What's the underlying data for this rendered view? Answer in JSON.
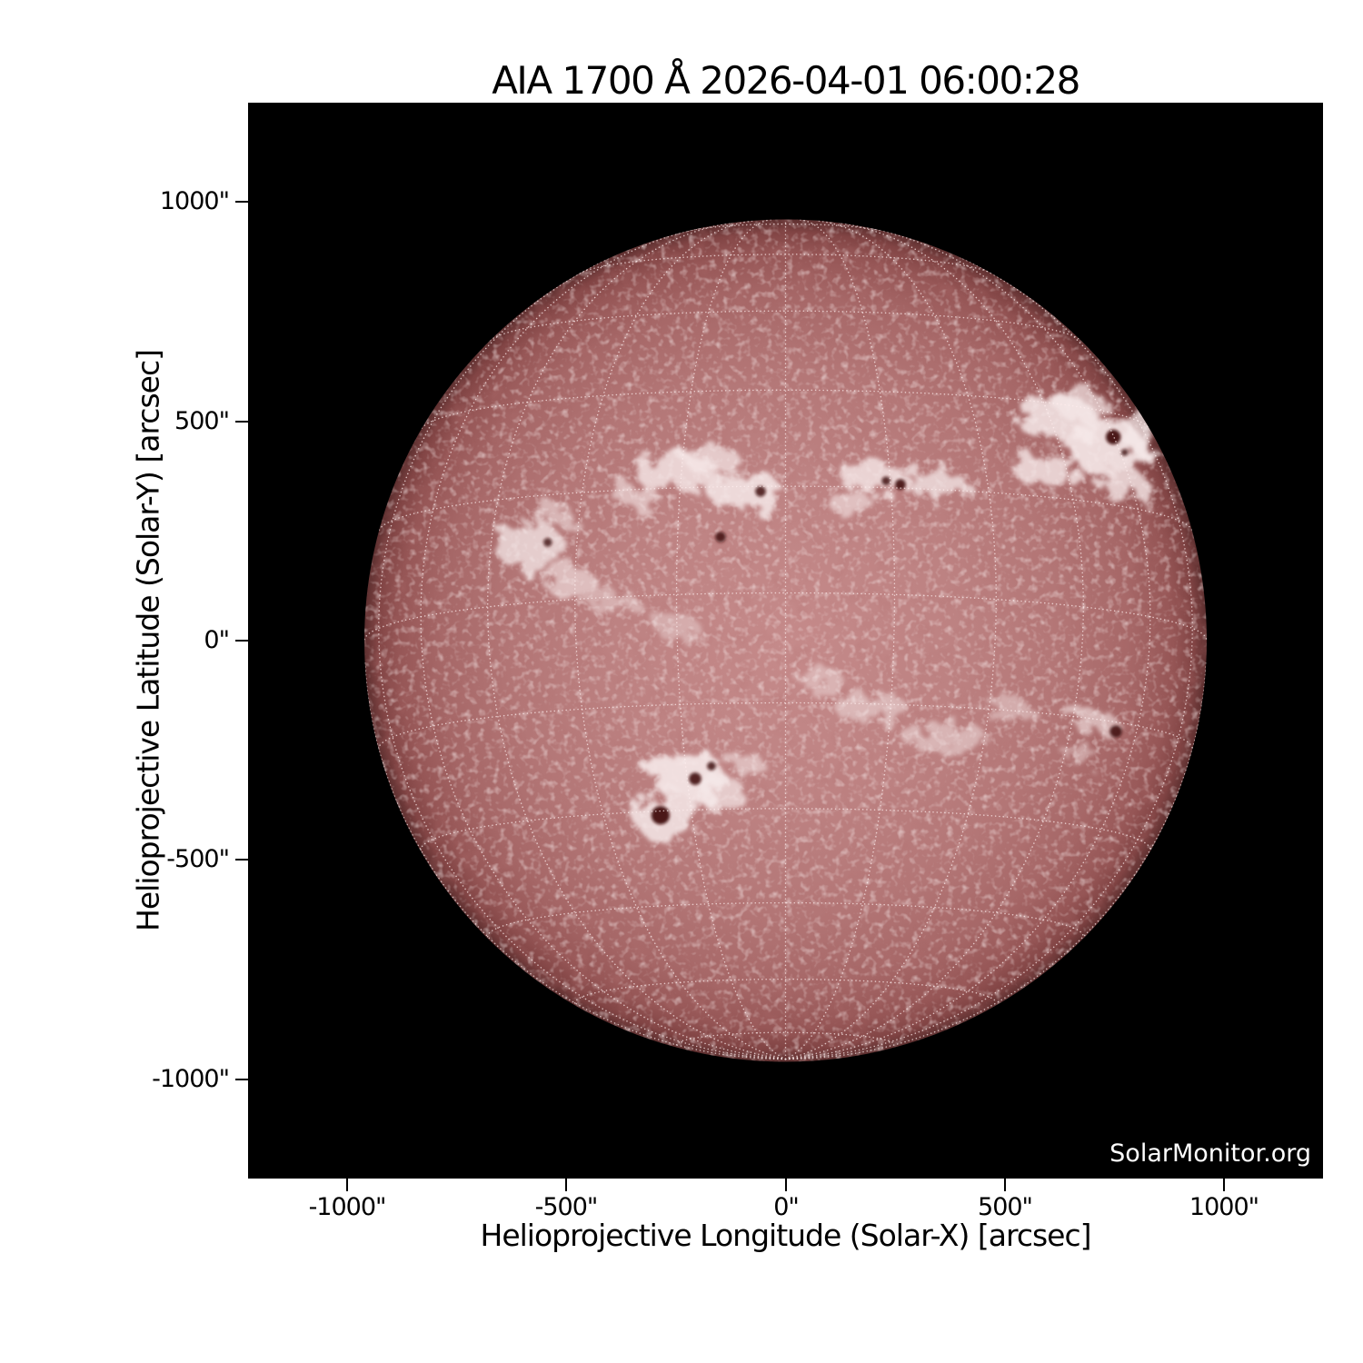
{
  "figure": {
    "watermark": "SolarMonitor.org",
    "background": "#ffffff",
    "plot_background": "#000000"
  },
  "chart_data": {
    "type": "heatmap",
    "title": "AIA 1700 Å 2026-04-01 06:00:28",
    "instrument": "AIA 1700 Å",
    "datetime": "2026-04-01 06:00:28",
    "xlabel": "Helioprojective Longitude (Solar-X) [arcsec]",
    "ylabel": "Helioprojective Latitude (Solar-Y) [arcsec]",
    "units": "arcsec",
    "xlim": [
      -1220,
      1220
    ],
    "ylim": [
      -1220,
      1220
    ],
    "grid_on": true,
    "legend": null,
    "x_ticks": [
      {
        "label": "-1000\"",
        "value": -1000
      },
      {
        "label": "-500\"",
        "value": -500
      },
      {
        "label": "0\"",
        "value": 0
      },
      {
        "label": "500\"",
        "value": 500
      },
      {
        "label": "1000\"",
        "value": 1000
      }
    ],
    "y_ticks": [
      {
        "label": "1000\"",
        "value": 1000
      },
      {
        "label": "500\"",
        "value": 500
      },
      {
        "label": "0\"",
        "value": 0
      },
      {
        "label": "-500\"",
        "value": -500
      },
      {
        "label": "-1000\"",
        "value": -1000
      }
    ],
    "solar_grid": {
      "type": "stonyhurst-heliographic",
      "spacing_deg": 15,
      "b0_deg": -6.5,
      "radius_arcsec": 960,
      "style": "dotted-white"
    },
    "palette": {
      "disk_center": "#c58a8a",
      "disk_mid": "#b37676",
      "disk_limb": "#5e3030",
      "plage": "#f6e9e9",
      "sunspot": "#400e0e",
      "grid_dots": "#ffeeee",
      "space": "#000000"
    },
    "features": {
      "plages": [
        [
          620,
          505,
          93,
          52,
          0,
          0.85
        ],
        [
          726,
          445,
          87,
          62,
          0,
          0.9
        ],
        [
          591,
          393,
          72,
          41,
          0,
          0.8
        ],
        [
          767,
          358,
          54,
          37,
          0,
          0.8
        ],
        [
          815,
          491,
          33,
          62,
          20,
          0.75
        ],
        [
          674,
          538,
          62,
          33,
          0,
          0.7
        ],
        [
          -247,
          383,
          99,
          41,
          0,
          0.8
        ],
        [
          -92,
          338,
          87,
          46,
          0,
          0.85
        ],
        [
          -169,
          414,
          66,
          29,
          0,
          0.7
        ],
        [
          -341,
          331,
          52,
          29,
          0,
          0.6
        ],
        [
          198,
          373,
          79,
          37,
          0,
          0.8
        ],
        [
          347,
          358,
          68,
          33,
          0,
          0.75
        ],
        [
          152,
          309,
          50,
          27,
          0,
          0.6
        ],
        [
          -585,
          217,
          79,
          54,
          0,
          0.75
        ],
        [
          -492,
          133,
          58,
          37,
          0,
          0.6
        ],
        [
          -533,
          288,
          50,
          27,
          0,
          0.55
        ],
        [
          -399,
          93,
          62,
          29,
          0,
          0.45
        ],
        [
          -247,
          31,
          54,
          25,
          0,
          0.4
        ],
        [
          -223,
          -304,
          87,
          54,
          0,
          0.9
        ],
        [
          -272,
          -398,
          79,
          54,
          0,
          0.85
        ],
        [
          -146,
          -348,
          58,
          37,
          0,
          0.7
        ],
        [
          -92,
          -280,
          41,
          25,
          0,
          0.55
        ],
        [
          194,
          -153,
          87,
          31,
          0,
          0.5
        ],
        [
          363,
          -222,
          99,
          35,
          0,
          0.5
        ],
        [
          504,
          -157,
          58,
          27,
          0,
          0.45
        ],
        [
          84,
          -93,
          52,
          25,
          0,
          0.45
        ],
        [
          705,
          -186,
          52,
          27,
          0,
          0.6
        ],
        [
          674,
          -259,
          37,
          21,
          0,
          0.45
        ]
      ],
      "sunspots": [
        [
          747,
          464,
          17,
          0.95
        ],
        [
          773,
          429,
          8,
          0.8
        ],
        [
          229,
          364,
          10,
          0.85
        ],
        [
          262,
          356,
          12,
          0.9
        ],
        [
          -57,
          340,
          12,
          0.85
        ],
        [
          -148,
          236,
          12,
          0.85
        ],
        [
          -542,
          224,
          10,
          0.8
        ],
        [
          -206,
          -315,
          14,
          0.9
        ],
        [
          -169,
          -286,
          10,
          0.85
        ],
        [
          -285,
          -398,
          21,
          0.95
        ],
        [
          753,
          -207,
          14,
          0.9
        ]
      ]
    }
  }
}
